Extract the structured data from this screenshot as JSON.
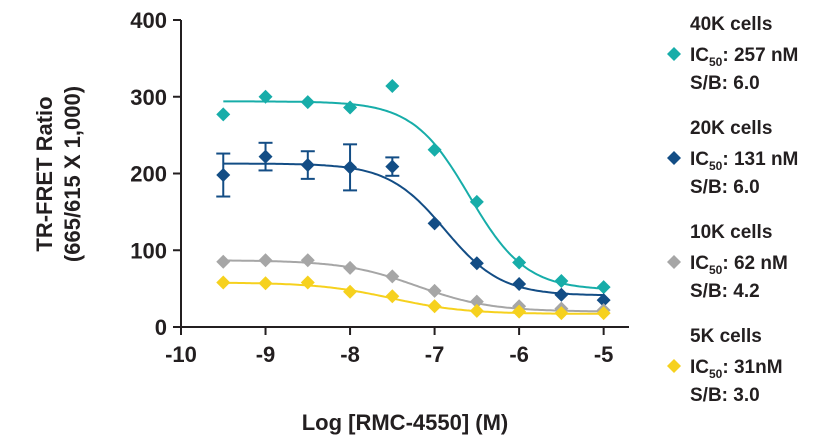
{
  "chart_data": {
    "type": "scatter",
    "xlabel": "Log [RMC-4550] (M)",
    "ylabel_lines": [
      "TR-FRET Ratio",
      "(665/615 X 1,000)"
    ],
    "xlim": [
      -10,
      -4.7
    ],
    "ylim": [
      0,
      400
    ],
    "x_ticks": [
      -10,
      -9,
      -8,
      -7,
      -6,
      -5
    ],
    "x_tick_labels": [
      "-10",
      "-9",
      "-8",
      "-7",
      "-6",
      "-5"
    ],
    "y_ticks": [
      0,
      100,
      200,
      300,
      400
    ],
    "y_tick_labels": [
      "0",
      "100",
      "200",
      "300",
      "400"
    ],
    "grid": false,
    "legend_position": "right",
    "marker": "diamond",
    "series": [
      {
        "name": "40K cells",
        "color": "#17ada9",
        "ic50_label": "IC",
        "ic50_sub": "50",
        "ic50_value": ": 257 nM",
        "sb": "S/B: 6.0",
        "x": [
          -9.5,
          -9.0,
          -8.5,
          -8.0,
          -7.5,
          -7.0,
          -6.5,
          -6.0,
          -5.5,
          -5.0
        ],
        "y": [
          277,
          300,
          293,
          286,
          314,
          231,
          163,
          84,
          60,
          52
        ],
        "fit": {
          "top": 294,
          "bottom": 48,
          "log_ic50": -6.59,
          "hill": 1.3
        }
      },
      {
        "name": "20K cells",
        "color": "#134d85",
        "ic50_label": "IC",
        "ic50_sub": "50",
        "ic50_value": ": 131 nM",
        "sb": "S/B: 6.0",
        "x": [
          -9.5,
          -9.0,
          -8.5,
          -8.0,
          -7.5,
          -7.0,
          -6.5,
          -6.0,
          -5.5,
          -5.0
        ],
        "y": [
          198,
          222,
          211,
          208,
          209,
          135,
          83,
          56,
          42,
          35
        ],
        "err": [
          28,
          18,
          18,
          30,
          12,
          0,
          0,
          0,
          0,
          0
        ],
        "fit": {
          "top": 213,
          "bottom": 41,
          "log_ic50": -6.88,
          "hill": 1.3
        }
      },
      {
        "name": "10K cells",
        "color": "#a6a6a6",
        "ic50_label": "IC",
        "ic50_sub": "50",
        "ic50_value": ": 62 nM",
        "sb": "S/B: 4.2",
        "x": [
          -9.5,
          -9.0,
          -8.5,
          -8.0,
          -7.5,
          -7.0,
          -6.5,
          -6.0,
          -5.5,
          -5.0
        ],
        "y": [
          85,
          87,
          87,
          77,
          66,
          47,
          33,
          27,
          24,
          22
        ],
        "fit": {
          "top": 87,
          "bottom": 20,
          "log_ic50": -7.21,
          "hill": 1.0
        }
      },
      {
        "name": "5K cells",
        "color": "#f6d11e",
        "ic50_label": "IC",
        "ic50_sub": "50",
        "ic50_value": ": 31nM",
        "sb": "S/B: 3.0",
        "x": [
          -9.5,
          -9.0,
          -8.5,
          -8.0,
          -7.5,
          -7.0,
          -6.5,
          -6.0,
          -5.5,
          -5.0
        ],
        "y": [
          58,
          57,
          58,
          46,
          40,
          27,
          21,
          20,
          18,
          18
        ],
        "fit": {
          "top": 58,
          "bottom": 17,
          "log_ic50": -7.51,
          "hill": 1.0
        }
      }
    ]
  }
}
